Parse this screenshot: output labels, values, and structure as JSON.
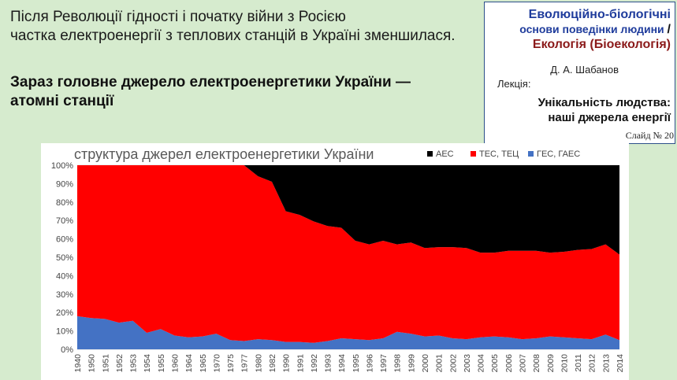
{
  "intro": {
    "line1": "Після Революції гідності і початку війни з Росією",
    "line2": "частка електроенергії з теплових станцій в Україні зменшилася."
  },
  "main_point": {
    "line1": "Зараз головне джерело електроенергетики України —",
    "line2": "атомні станції"
  },
  "info": {
    "course_line1": "Еволюційно-біологічні",
    "course_line2": "основи поведінки людини",
    "separator": "/",
    "course_line3": "Екологія (Біоекологія)",
    "author": "Д. А. Шабанов",
    "lecture_label": "Лекція:",
    "lecture_line1": "Унікальність людства:",
    "lecture_line2": "наші джерела енергії",
    "slide": "Слайд № 20"
  },
  "colors": {
    "aes": "#000000",
    "tes": "#ff0000",
    "ges": "#4472c4"
  },
  "chart_data": {
    "type": "area",
    "stacked": true,
    "percent": true,
    "title": "структура джерел електроенергетики України",
    "categories": [
      "1940",
      "1950",
      "1951",
      "1952",
      "1953",
      "1954",
      "1955",
      "1960",
      "1964",
      "1965",
      "1970",
      "1975",
      "1977",
      "1980",
      "1982",
      "1990",
      "1991",
      "1992",
      "1993",
      "1994",
      "1995",
      "1996",
      "1997",
      "1998",
      "1999",
      "2000",
      "2001",
      "2002",
      "2003",
      "2004",
      "2005",
      "2006",
      "2007",
      "2008",
      "2009",
      "2010",
      "2011",
      "2012",
      "2013",
      "2014"
    ],
    "series": [
      {
        "name": "ГЕС, ГАЕС",
        "color_key": "ges",
        "values": [
          18,
          17,
          16.5,
          14.5,
          15.5,
          9,
          11,
          7.5,
          6.5,
          7,
          8.5,
          5,
          4.5,
          5.5,
          5,
          4,
          4,
          3.5,
          4.5,
          6,
          5.5,
          5,
          6,
          9.5,
          8.5,
          7,
          7.5,
          6,
          5.5,
          6.5,
          7,
          6.5,
          5.5,
          6,
          7,
          6.5,
          6,
          5.5,
          8,
          5
        ]
      },
      {
        "name": "ТЕС, ТЕЦ",
        "color_key": "tes",
        "values": [
          82,
          83,
          83.5,
          85.5,
          84.5,
          91,
          89,
          92.5,
          93.5,
          93,
          91.5,
          95,
          95.5,
          88.5,
          86,
          71,
          69,
          66,
          62.5,
          60,
          53.5,
          52,
          53,
          47.5,
          49.5,
          48,
          48,
          49.5,
          49.5,
          46,
          45.5,
          47,
          48,
          47.5,
          45.5,
          46.5,
          48,
          49,
          49,
          46.5
        ]
      },
      {
        "name": "АЕС",
        "color_key": "aes",
        "values": [
          0,
          0,
          0,
          0,
          0,
          0,
          0,
          0,
          0,
          0,
          0,
          0,
          0,
          6,
          9,
          25,
          27,
          30.5,
          33,
          34,
          41,
          43,
          41,
          43,
          42,
          45,
          44.5,
          44.5,
          45,
          47.5,
          47.5,
          46.5,
          46.5,
          46.5,
          47.5,
          47,
          46,
          45.5,
          43,
          48.5
        ]
      }
    ],
    "legend_order": [
      "АЕС",
      "ТЕС, ТЕЦ",
      "ГЕС, ГАЕС"
    ],
    "legend_position": "top-right",
    "yticks": [
      "0%",
      "10%",
      "20%",
      "30%",
      "40%",
      "50%",
      "60%",
      "70%",
      "80%",
      "90%",
      "100%"
    ],
    "ylim": [
      0,
      100
    ]
  }
}
